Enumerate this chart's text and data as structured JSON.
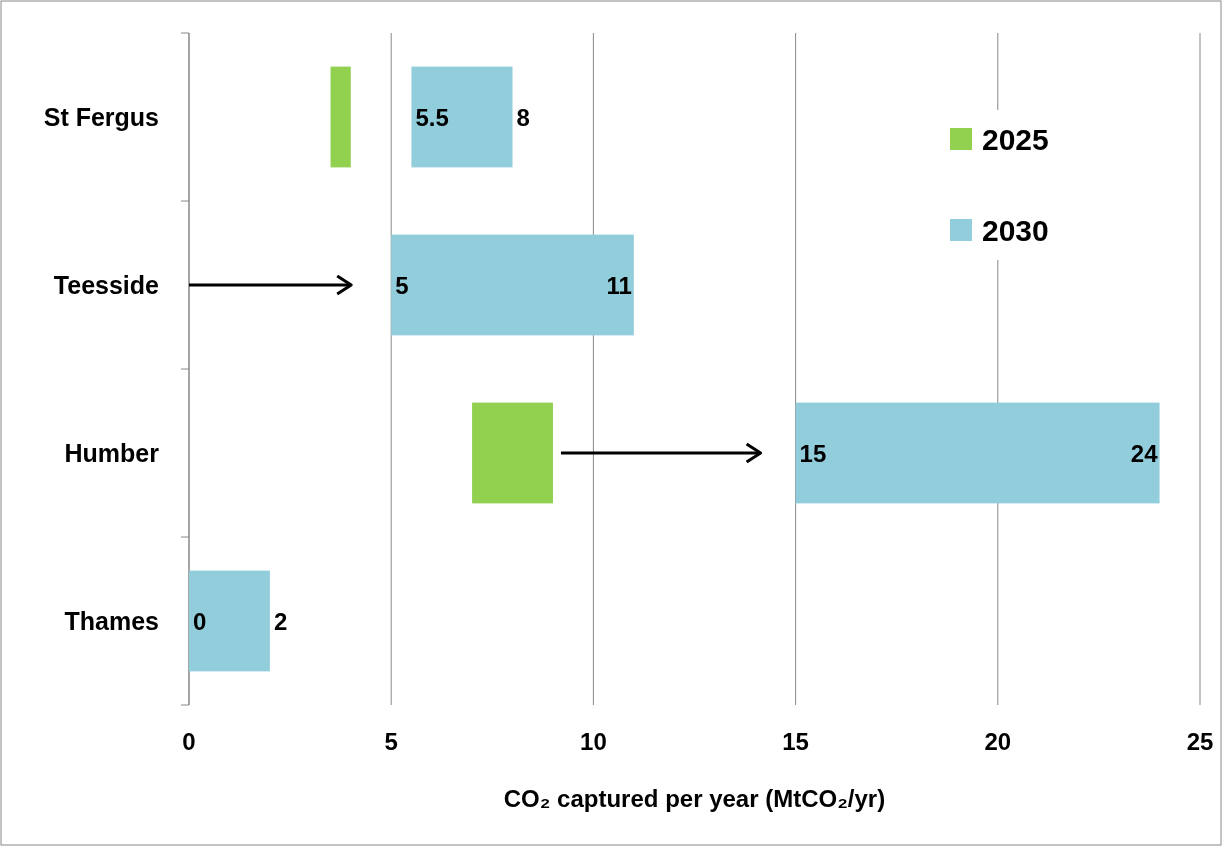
{
  "chart_data": {
    "type": "bar",
    "orientation": "horizontal",
    "categories": [
      "St Fergus",
      "Teesside",
      "Humber",
      "Thames"
    ],
    "series": [
      {
        "name": "2025",
        "color": "#92d050",
        "base": [
          3.5,
          null,
          7,
          null
        ],
        "values": [
          0.5,
          null,
          2,
          null
        ]
      },
      {
        "name": "2030",
        "color": "#92cddc",
        "base": [
          5.5,
          5,
          15,
          0
        ],
        "values": [
          2.5,
          6,
          9,
          2
        ]
      }
    ],
    "xlabel": "CO₂ captured per year (MtCO₂/yr)",
    "xlim": [
      0,
      25
    ],
    "xticks": [
      0,
      5,
      10,
      15,
      20,
      25
    ],
    "grid": "x",
    "legend": "top right",
    "annotations": [
      {
        "text": "5.5",
        "x": 5.5,
        "y": "St Fergus"
      },
      {
        "text": "8",
        "x": 8,
        "y": "St Fergus"
      },
      {
        "text": "5",
        "x": 5,
        "y": "Teesside"
      },
      {
        "text": "11",
        "x": 11,
        "y": "Teesside"
      },
      {
        "text": "15",
        "x": 15,
        "y": "Humber"
      },
      {
        "text": "24",
        "x": 24,
        "y": "Humber"
      },
      {
        "text": "0",
        "x": 0,
        "y": "Thames"
      },
      {
        "text": "2",
        "x": 2,
        "y": "Thames"
      }
    ]
  }
}
